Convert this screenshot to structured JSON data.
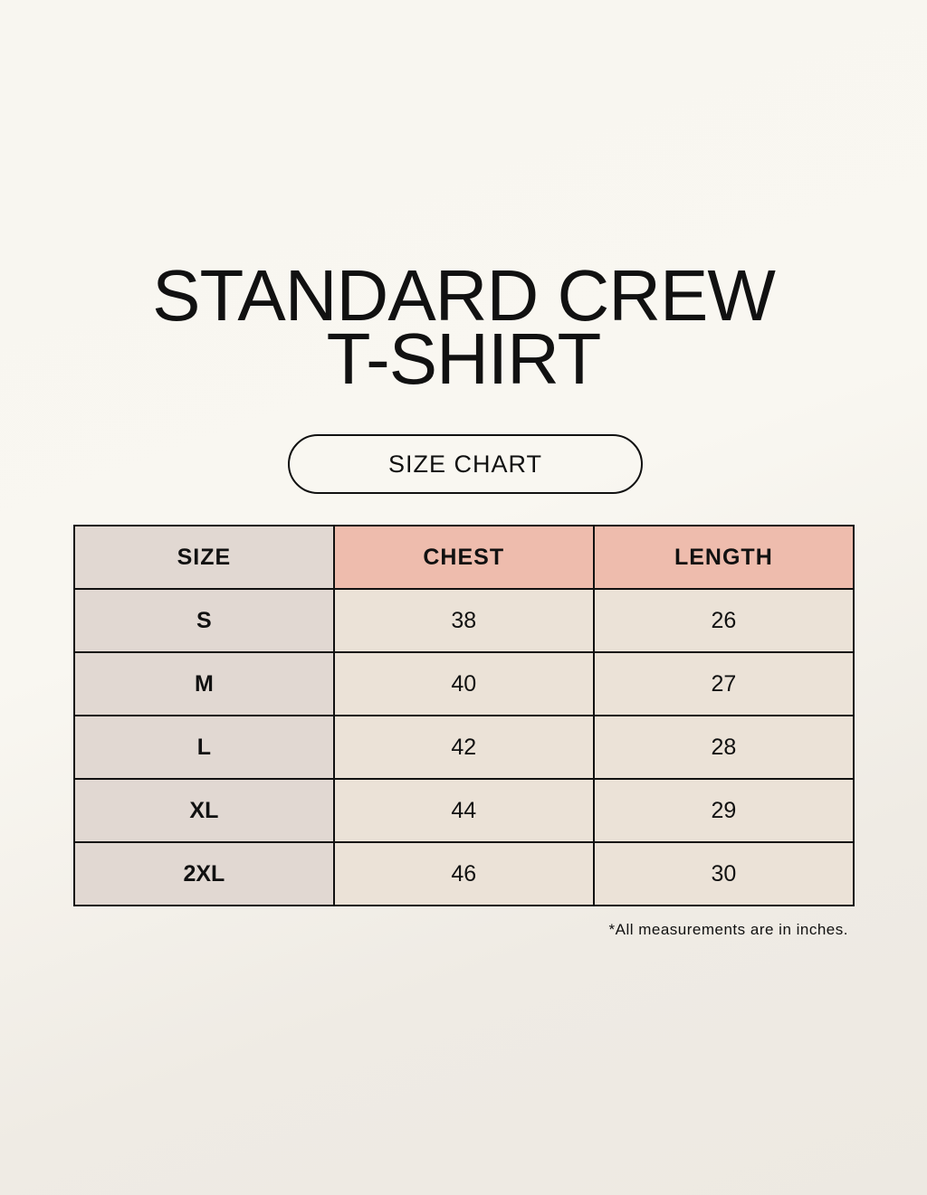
{
  "title": {
    "line1": "STANDARD CREW",
    "line2": "T-SHIRT"
  },
  "badge": "SIZE CHART",
  "table": {
    "headers": [
      "SIZE",
      "CHEST",
      "LENGTH"
    ],
    "rows": [
      [
        "S",
        "38",
        "26"
      ],
      [
        "M",
        "40",
        "27"
      ],
      [
        "L",
        "42",
        "28"
      ],
      [
        "XL",
        "44",
        "29"
      ],
      [
        "2XL",
        "46",
        "30"
      ]
    ]
  },
  "note": "*All measurements are in inches.",
  "colors": {
    "size_column": "#e1d8d2",
    "header_accent": "#eebcad",
    "value_cells": "#ebe2d7",
    "background": "#f8f6f0"
  }
}
